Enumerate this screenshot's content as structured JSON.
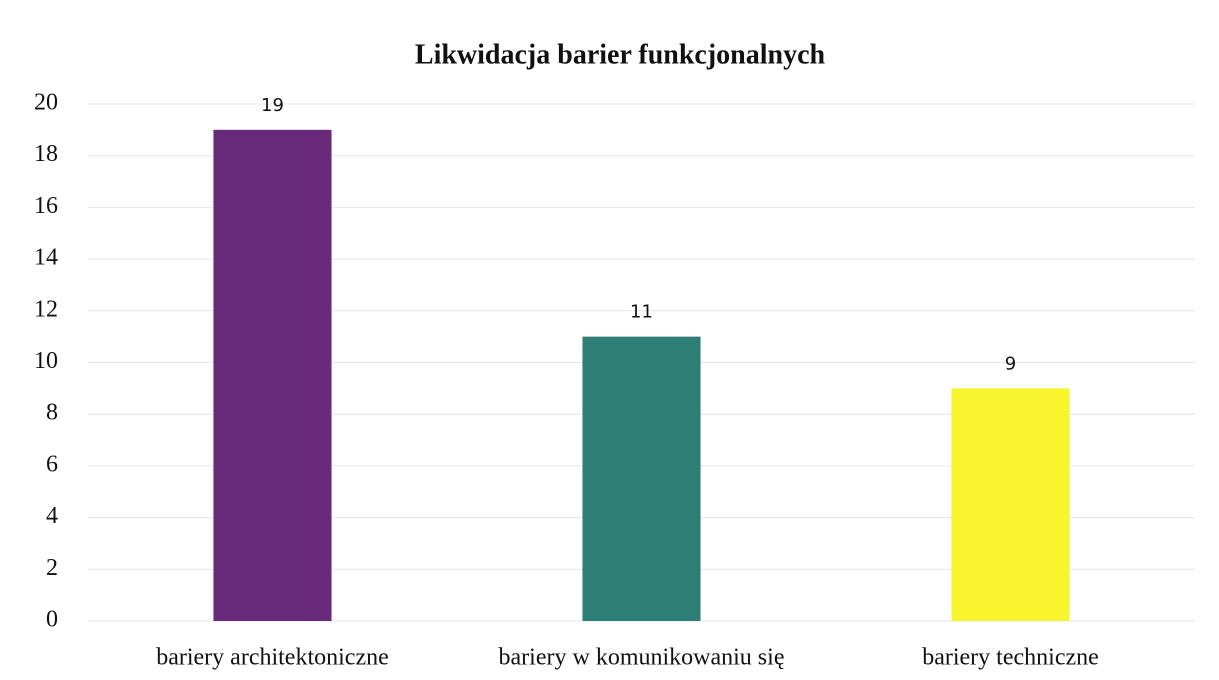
{
  "chart_data": {
    "type": "bar",
    "title": "Likwidacja barier funkcjonalnych",
    "categories": [
      "bariery architektoniczne",
      "bariery w komunikowaniu się",
      "bariery techniczne"
    ],
    "values": [
      19,
      11,
      9
    ],
    "colors": [
      "#6a2a7c",
      "#2f7d77",
      "#f6f52e"
    ],
    "ylim": [
      0,
      20
    ],
    "yticks": [
      0,
      2,
      4,
      6,
      8,
      10,
      12,
      14,
      16,
      18,
      20
    ],
    "grid": true,
    "data_labels": true
  }
}
